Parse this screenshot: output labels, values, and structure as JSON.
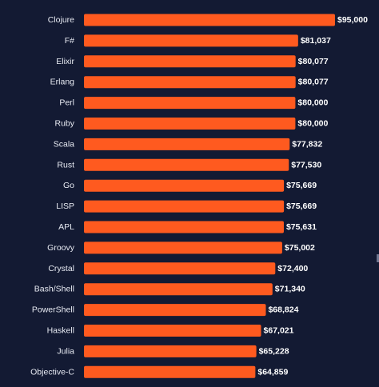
{
  "chart_data": {
    "type": "bar",
    "orientation": "horizontal",
    "categories": [
      "Clojure",
      "F#",
      "Elixir",
      "Erlang",
      "Perl",
      "Ruby",
      "Scala",
      "Rust",
      "Go",
      "LISP",
      "APL",
      "Groovy",
      "Crystal",
      "Bash/Shell",
      "PowerShell",
      "Haskell",
      "Julia",
      "Objective-C"
    ],
    "values": [
      95000,
      81037,
      80077,
      80077,
      80000,
      80000,
      77832,
      77530,
      75669,
      75669,
      75631,
      75002,
      72400,
      71340,
      68824,
      67021,
      65228,
      64859
    ],
    "value_labels": [
      "$95,000",
      "$81,037",
      "$80,077",
      "$80,077",
      "$80,000",
      "$80,000",
      "$77,832",
      "$77,530",
      "$75,669",
      "$75,669",
      "$75,631",
      "$75,002",
      "$72,400",
      "$71,340",
      "$68,824",
      "$67,021",
      "$65,228",
      "$64,859"
    ],
    "title": "",
    "xlabel": "",
    "ylabel": "",
    "xlim": [
      0,
      95000
    ],
    "grid": false,
    "legend": "none",
    "colors": {
      "bar": "#ff5a1f",
      "background": "#131a33",
      "label": "#e8ebf3",
      "value_label": "#ffffff"
    }
  }
}
